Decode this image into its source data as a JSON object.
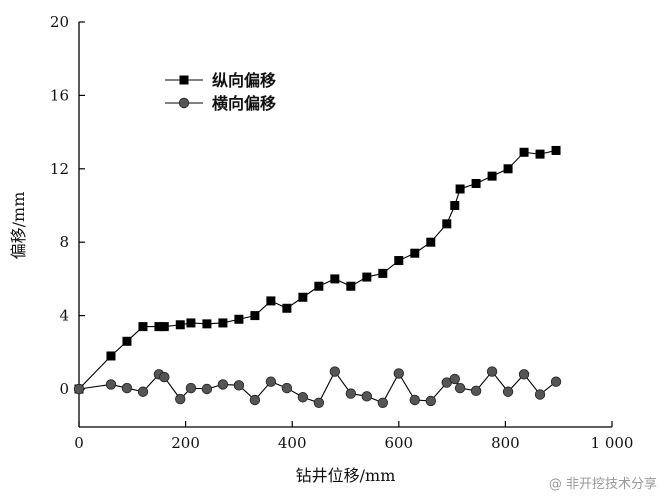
{
  "chart_data": {
    "type": "line",
    "xlabel": "钻井位移/mm",
    "ylabel": "偏移/mm",
    "xlim": [
      0,
      1000
    ],
    "ylim": [
      0,
      20
    ],
    "xticks": [
      0,
      200,
      400,
      600,
      800,
      1000
    ],
    "xtick_labels": [
      "0",
      "200",
      "400",
      "600",
      "800",
      "1 000"
    ],
    "yticks": [
      0,
      4,
      8,
      12,
      16,
      20
    ],
    "grid": false,
    "legend_position": "top-left",
    "series": [
      {
        "name": "纵向偏移",
        "marker": "square",
        "color": "#000000",
        "x": [
          0,
          60,
          90,
          120,
          150,
          160,
          190,
          210,
          240,
          270,
          300,
          330,
          360,
          390,
          420,
          450,
          480,
          510,
          540,
          570,
          600,
          630,
          660,
          690,
          705,
          715,
          745,
          775,
          805,
          835,
          865,
          895
        ],
        "y": [
          0.0,
          1.8,
          2.6,
          3.4,
          3.4,
          3.4,
          3.5,
          3.6,
          3.55,
          3.6,
          3.8,
          4.0,
          4.8,
          4.4,
          5.0,
          5.6,
          6.0,
          5.6,
          6.1,
          6.3,
          7.0,
          7.4,
          8.0,
          9.0,
          10.0,
          10.9,
          11.2,
          11.6,
          12.0,
          12.9,
          12.8,
          13.0
        ]
      },
      {
        "name": "横向偏移",
        "marker": "circle",
        "color": "#555555",
        "x": [
          0,
          60,
          90,
          120,
          150,
          160,
          190,
          210,
          240,
          270,
          300,
          330,
          360,
          390,
          420,
          450,
          480,
          510,
          540,
          570,
          600,
          630,
          660,
          690,
          705,
          715,
          745,
          775,
          805,
          835,
          865,
          895
        ],
        "y": [
          0.0,
          0.25,
          0.05,
          -0.15,
          0.8,
          0.65,
          -0.55,
          0.05,
          0.0,
          0.25,
          0.2,
          -0.6,
          0.4,
          0.05,
          -0.45,
          -0.75,
          0.95,
          -0.25,
          -0.4,
          -0.75,
          0.85,
          -0.6,
          -0.65,
          0.35,
          0.55,
          0.05,
          -0.1,
          0.95,
          -0.15,
          0.8,
          -0.3,
          0.4
        ]
      }
    ]
  },
  "watermark": "@ 非开挖技术分享"
}
